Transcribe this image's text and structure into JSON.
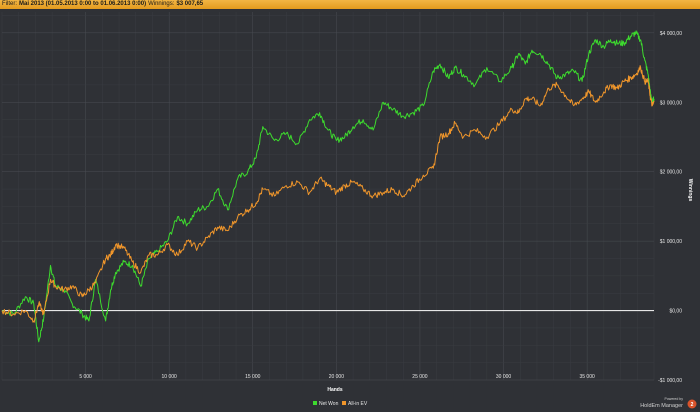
{
  "filter_bar": {
    "prefix": "Filter:",
    "filter_text": "Mai 2013 (01.05.2013 0:00 to 01.06.2013 0:00)",
    "winnings_label": "Winnings:",
    "winnings_value": "$3 007,65"
  },
  "colors": {
    "net_won": "#3ddb2e",
    "all_in_ev": "#f0962b",
    "background": "#2f3136",
    "grid": "#3f4247",
    "zero_line": "#e6e6e6"
  },
  "branding": {
    "powered_by": "Powered by",
    "product": "HoldEm Manager",
    "logo_glyph": "2"
  },
  "chart_data": {
    "type": "line",
    "xlabel": "Hands",
    "ylabel": "Winnings",
    "xlim": [
      0,
      39000
    ],
    "ylim": [
      -1000,
      4300
    ],
    "x_ticks": [
      5000,
      10000,
      15000,
      20000,
      25000,
      30000,
      35000
    ],
    "x_tick_labels": [
      "5 000",
      "10 000",
      "15 000",
      "20 000",
      "25 000",
      "30 000",
      "35 000"
    ],
    "y_ticks": [
      -1000,
      0,
      1000,
      2000,
      3000,
      4000
    ],
    "y_tick_labels": [
      "-$1 000,00",
      "$0,00",
      "$1 000,00",
      "$2 000,00",
      "$3 000,00",
      "$4 000,00"
    ],
    "legend_position": "bottom-center",
    "y_axis_side": "right",
    "grid": true,
    "series": [
      {
        "name": "Net Won",
        "color": "#3ddb2e",
        "x": [
          0,
          700,
          1400,
          1900,
          2200,
          2500,
          2900,
          3200,
          3700,
          4200,
          4800,
          5200,
          5600,
          6200,
          6500,
          6800,
          7300,
          7800,
          8300,
          8800,
          9300,
          9900,
          10500,
          11100,
          11700,
          12300,
          12900,
          13500,
          14100,
          14700,
          15200,
          15600,
          16300,
          17000,
          17700,
          18400,
          19000,
          19500,
          20000,
          20500,
          21000,
          21600,
          22200,
          22800,
          23400,
          24000,
          24600,
          25200,
          25800,
          26200,
          26700,
          27100,
          27600,
          28300,
          29000,
          29800,
          30500,
          30900,
          31300,
          31700,
          32200,
          32700,
          33200,
          33700,
          34200,
          34700,
          35100,
          35500,
          36000,
          36400,
          36800,
          37200,
          37600,
          37900,
          38200,
          38450,
          38650,
          38800,
          38900,
          39000
        ],
        "y": [
          0,
          -50,
          200,
          100,
          -450,
          -100,
          650,
          350,
          300,
          100,
          -50,
          -150,
          450,
          -150,
          300,
          550,
          700,
          650,
          350,
          750,
          850,
          1000,
          1350,
          1250,
          1450,
          1500,
          1750,
          1450,
          1900,
          2000,
          2200,
          2650,
          2450,
          2550,
          2400,
          2750,
          2850,
          2600,
          2450,
          2500,
          2650,
          2750,
          2600,
          3000,
          2900,
          2800,
          2850,
          2950,
          3450,
          3550,
          3350,
          3500,
          3400,
          3250,
          3500,
          3300,
          3500,
          3700,
          3550,
          3750,
          3700,
          3550,
          3350,
          3400,
          3450,
          3300,
          3700,
          3900,
          3800,
          3900,
          3850,
          3850,
          3950,
          4000,
          3900,
          3600,
          3400,
          3100,
          3000,
          3050
        ]
      },
      {
        "name": "All-in EV",
        "color": "#f0962b",
        "x": [
          0,
          700,
          1400,
          1900,
          2200,
          2500,
          2900,
          3200,
          3700,
          4200,
          4800,
          5200,
          5600,
          6200,
          6500,
          6800,
          7300,
          7800,
          8300,
          8800,
          9300,
          9900,
          10500,
          11100,
          11700,
          12300,
          12900,
          13500,
          14100,
          14700,
          15200,
          15600,
          16300,
          17000,
          17700,
          18400,
          19000,
          19500,
          20000,
          20500,
          21000,
          21600,
          22200,
          22800,
          23400,
          24000,
          24600,
          25200,
          25800,
          26200,
          26700,
          27100,
          27600,
          28300,
          29000,
          29800,
          30500,
          30900,
          31300,
          31700,
          32200,
          32700,
          33200,
          33700,
          34200,
          34700,
          35100,
          35500,
          36000,
          36400,
          36800,
          37200,
          37600,
          37900,
          38200,
          38450,
          38650,
          38800,
          38900,
          39000
        ],
        "y": [
          0,
          -50,
          0,
          -150,
          100,
          -50,
          450,
          350,
          300,
          350,
          200,
          300,
          400,
          750,
          800,
          950,
          900,
          700,
          550,
          800,
          800,
          950,
          800,
          1000,
          900,
          1050,
          1200,
          1150,
          1350,
          1450,
          1550,
          1750,
          1650,
          1800,
          1850,
          1700,
          1900,
          1800,
          1700,
          1800,
          1850,
          1750,
          1650,
          1700,
          1750,
          1650,
          1800,
          1950,
          2050,
          2500,
          2550,
          2700,
          2500,
          2600,
          2500,
          2700,
          2900,
          2850,
          3050,
          3050,
          2950,
          3200,
          3250,
          3100,
          2950,
          3050,
          3150,
          3000,
          3150,
          3250,
          3200,
          3300,
          3350,
          3400,
          3500,
          3300,
          3300,
          3050,
          2950,
          3000
        ]
      }
    ]
  }
}
